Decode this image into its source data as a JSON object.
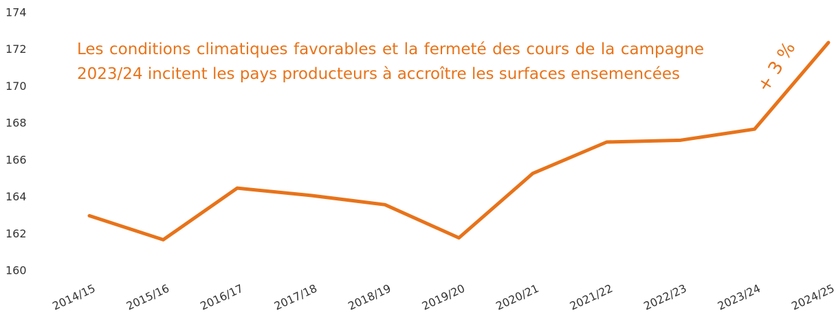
{
  "chart_data": {
    "type": "line",
    "categories": [
      "2014/15",
      "2015/16",
      "2016/17",
      "2017/18",
      "2018/19",
      "2019/20",
      "2020/21",
      "2021/22",
      "2022/23",
      "2023/24",
      "2024/25"
    ],
    "values": [
      163.0,
      161.7,
      164.5,
      164.1,
      163.6,
      161.8,
      165.3,
      167.0,
      167.1,
      167.7,
      172.4
    ],
    "color": "#e8731a",
    "ylim": [
      160,
      174
    ],
    "yticks": [
      160,
      162,
      164,
      166,
      168,
      170,
      172,
      174
    ],
    "grid": false,
    "annotations": [
      "Les conditions climatiques favorables et la fermeté des cours de la campagne 2023/24 incitent les pays producteurs à accroître les surfaces ensemencées",
      "+ 3 %"
    ]
  }
}
